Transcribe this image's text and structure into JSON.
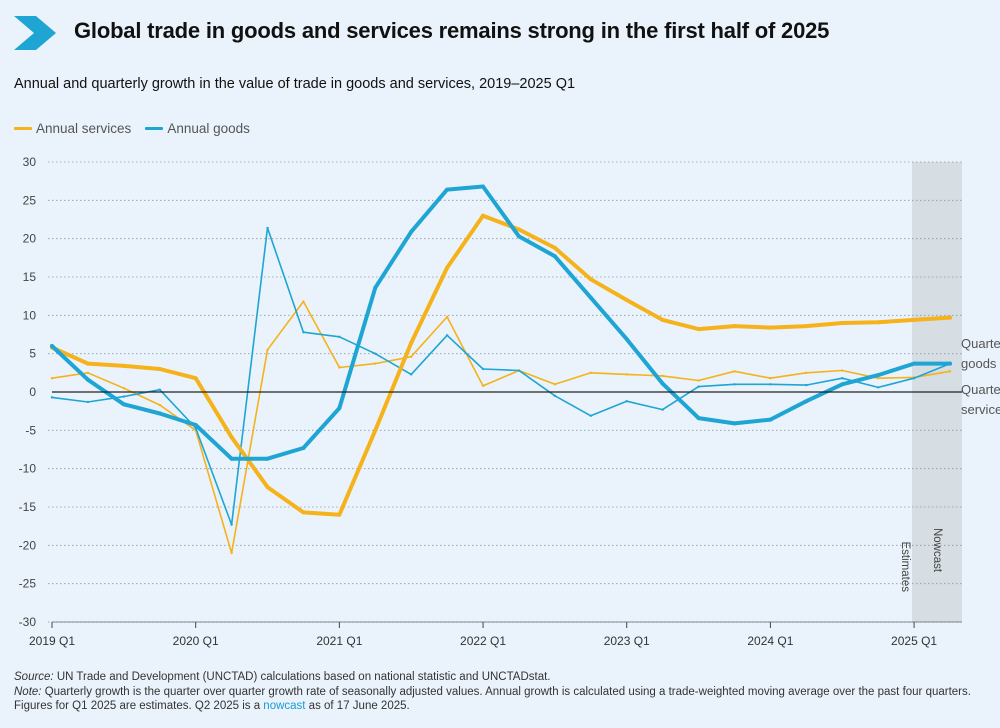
{
  "header": {
    "title": "Global trade in goods and services remains strong in the first half of 2025",
    "subtitle": "Annual and quarterly growth in the value of trade in goods and services, 2019–2025 Q1"
  },
  "legend": [
    {
      "label": "Annual services",
      "color": "#f5b21a"
    },
    {
      "label": "Annual goods",
      "color": "#1ea5d4"
    }
  ],
  "chart_data": {
    "type": "line",
    "title": "Annual and quarterly growth in the value of trade in goods and services, 2019–2025 Q1",
    "xlabel": "",
    "ylabel": "",
    "ylim": [
      -30,
      30
    ],
    "yticks": [
      "30",
      "25",
      "20",
      "15",
      "10",
      "5",
      "0",
      "-5",
      "-10",
      "-15",
      "-20",
      "-25",
      "-30"
    ],
    "x_categories": [
      "2019 Q1",
      "2019 Q2",
      "2019 Q3",
      "2019 Q4",
      "2020 Q1",
      "2020 Q2",
      "2020 Q3",
      "2020 Q4",
      "2021 Q1",
      "2021 Q2",
      "2021 Q3",
      "2021 Q4",
      "2022 Q1",
      "2022 Q2",
      "2022 Q3",
      "2022 Q4",
      "2023 Q1",
      "2023 Q2",
      "2023 Q3",
      "2023 Q4",
      "2024 Q1",
      "2024 Q2",
      "2024 Q3",
      "2024 Q4",
      "2025 Q1",
      "2025 Q2"
    ],
    "x_tick_labels": [
      {
        "index": 0,
        "label": "2019 Q1"
      },
      {
        "index": 4,
        "label": "2020 Q1"
      },
      {
        "index": 8,
        "label": "2021 Q1"
      },
      {
        "index": 12,
        "label": "2022 Q1"
      },
      {
        "index": 16,
        "label": "2023 Q1"
      },
      {
        "index": 20,
        "label": "2024 Q1"
      },
      {
        "index": 24,
        "label": "2025 Q1"
      }
    ],
    "series": [
      {
        "name": "Quarterly services",
        "color": "#f5b21a",
        "thin": true,
        "values": [
          1.8,
          2.5,
          0.5,
          -1.7,
          -5.0,
          -21.0,
          5.5,
          11.8,
          3.2,
          3.7,
          4.6,
          9.8,
          0.8,
          2.8,
          1.0,
          2.5,
          2.3,
          2.1,
          1.5,
          2.7,
          1.8,
          2.5,
          2.8,
          1.8,
          1.9,
          2.7
        ]
      },
      {
        "name": "Quarterly goods",
        "color": "#1ea5d4",
        "thin": true,
        "values": [
          -0.7,
          -1.3,
          -0.6,
          0.3,
          -4.7,
          -17.3,
          21.4,
          7.8,
          7.2,
          5.0,
          2.3,
          7.4,
          3.0,
          2.8,
          -0.5,
          -3.1,
          -1.2,
          -2.3,
          0.7,
          1.0,
          1.0,
          0.9,
          1.8,
          0.6,
          1.8,
          3.7
        ]
      },
      {
        "name": "Annual services",
        "color": "#f5b21a",
        "thin": false,
        "values": [
          5.8,
          3.7,
          3.4,
          3.0,
          1.8,
          -5.9,
          -12.4,
          -15.7,
          -16.0,
          -5.0,
          6.4,
          16.2,
          23.0,
          21.2,
          18.8,
          14.7,
          12.0,
          9.4,
          8.2,
          8.6,
          8.4,
          8.6,
          9.0,
          9.1,
          9.4,
          9.7
        ]
      },
      {
        "name": "Annual goods",
        "color": "#1ea5d4",
        "thin": false,
        "values": [
          6.0,
          1.6,
          -1.6,
          -2.8,
          -4.3,
          -8.7,
          -8.7,
          -7.3,
          -2.1,
          13.6,
          20.9,
          26.4,
          26.8,
          20.3,
          17.7,
          12.3,
          6.9,
          1.1,
          -3.4,
          -4.1,
          -3.6,
          -1.2,
          1.0,
          2.2,
          3.7,
          3.7
        ]
      }
    ],
    "annotations": {
      "estimates": "Estimates",
      "nowcast": "Nowcast",
      "quarterly_goods": [
        "Quarterly",
        "goods"
      ],
      "quarterly_services": [
        "Quarterly",
        "services"
      ]
    }
  },
  "footer": {
    "source_label": "Source:",
    "source_text": " UN Trade and Development (UNCTAD) calculations based on national statistic and UNCTADstat.",
    "note_label": "Note:",
    "note_text": " Quarterly growth is the quarter over quarter growth rate of seasonally adjusted values. Annual growth is calculated using a trade-weighted moving average over the past four quarters. Figures for Q1 2025 are estimates. Q2 2025 is a ",
    "note_link": "nowcast",
    "note_tail": " as of 17 June 2025."
  }
}
